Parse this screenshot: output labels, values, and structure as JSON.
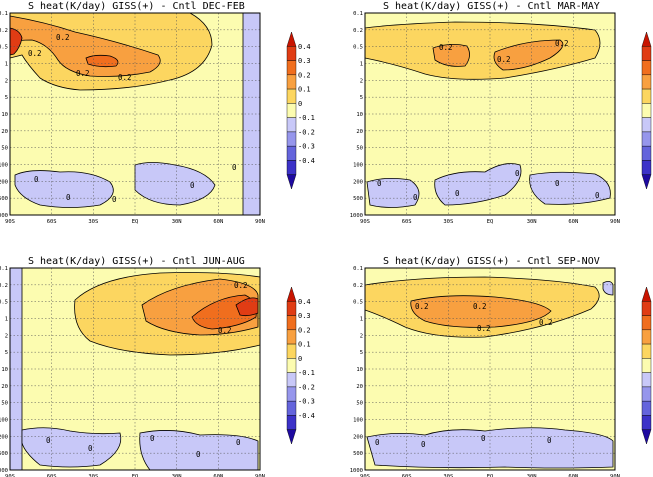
{
  "chart_data": [
    {
      "type": "heatmap",
      "title": "S heat(K/day) GISS(+) - Cntl  DEC-FEB",
      "season": "DEC-FEB",
      "y_ticks": [
        "0.1",
        "0.2",
        "0.5",
        "1",
        "2",
        "5",
        "10",
        "20",
        "50",
        "100",
        "200",
        "500",
        "1000"
      ],
      "x_ticks": [
        "90S",
        "60S",
        "30S",
        "EQ",
        "30N",
        "60N",
        "90N"
      ],
      "cells": [
        {
          "at": "60S-90N",
          "range": "0.1-0.2",
          "value": 0.1
        },
        {
          "at": "90S-60S",
          "range": "0.2-0.5",
          "value": 0.2
        },
        {
          "at": "90S",
          "range": "0.5",
          "value": 0.4
        },
        {
          "at": "30S-EQ",
          "range": "1",
          "value": 0.25
        },
        {
          "at": "60N-90N",
          "range": "20-1000",
          "value": -0.1
        }
      ],
      "contour_labels": [
        "0.2",
        "0.2",
        "0.2",
        "0.2",
        "0",
        "0",
        "0",
        "0",
        "0"
      ]
    },
    {
      "type": "heatmap",
      "title": "S heat(K/day) GISS(+) - Cntl  MAR-MAY",
      "season": "MAR-MAY",
      "y_ticks": [
        "0.1",
        "0.2",
        "0.5",
        "1",
        "2",
        "5",
        "10",
        "20",
        "50",
        "100",
        "200",
        "500",
        "1000"
      ],
      "x_ticks": [
        "90S",
        "60S",
        "30S",
        "EQ",
        "30N",
        "60N",
        "90N"
      ],
      "cells": [
        {
          "at": "90S-90N",
          "range": "0.2-1",
          "value": 0.1
        },
        {
          "at": "30S-EQ",
          "range": "0.5-1",
          "value": 0.2
        },
        {
          "at": "EQ-60N",
          "range": "0.5-1",
          "value": 0.2
        }
      ],
      "contour_labels": [
        "0.2",
        "0.2",
        "0.2",
        "0",
        "0",
        "0",
        "0",
        "0",
        "0"
      ]
    },
    {
      "type": "heatmap",
      "title": "S heat(K/day) GISS(+) - Cntl  JUN-AUG",
      "season": "JUN-AUG",
      "y_ticks": [
        "0.1",
        "0.2",
        "0.5",
        "1",
        "2",
        "5",
        "10",
        "20",
        "50",
        "100",
        "200",
        "500",
        "1000"
      ],
      "x_ticks": [
        "90S",
        "60S",
        "30S",
        "EQ",
        "30N",
        "60N",
        "90N"
      ],
      "cells": [
        {
          "at": "60S-90N",
          "range": "0.2-2",
          "value": 0.1
        },
        {
          "at": "EQ-90N",
          "range": "0.2-1",
          "value": 0.25
        },
        {
          "at": "60N-90N",
          "range": "0.5-1",
          "value": 0.3
        },
        {
          "at": "90S",
          "range": "0.1-1000",
          "value": -0.1
        }
      ],
      "contour_labels": [
        "0.2",
        "0.2",
        "0",
        "0",
        "0",
        "0",
        "0"
      ]
    },
    {
      "type": "heatmap",
      "title": "S heat(K/day) GISS(+) - Cntl  SEP-NOV",
      "season": "SEP-NOV",
      "y_ticks": [
        "0.1",
        "0.2",
        "0.5",
        "1",
        "2",
        "5",
        "10",
        "20",
        "50",
        "100",
        "200",
        "500",
        "1000"
      ],
      "x_ticks": [
        "90S",
        "60S",
        "30S",
        "EQ",
        "30N",
        "60N",
        "90N"
      ],
      "cells": [
        {
          "at": "90S-90N",
          "range": "0.2-1",
          "value": 0.1
        },
        {
          "at": "60S-60N",
          "range": "0.5-1",
          "value": 0.2
        }
      ],
      "contour_labels": [
        "0.2",
        "0.2",
        "0.2",
        "0.2",
        "0",
        "0",
        "0",
        "0"
      ]
    }
  ],
  "colorbar": {
    "labels": [
      "0.4",
      "0.3",
      "0.2",
      "0.1",
      "0",
      "-0.1",
      "-0.2",
      "-0.3",
      "-0.4"
    ],
    "colors": [
      "#c81400",
      "#e03c14",
      "#f06e1e",
      "#f8a040",
      "#fcd660",
      "#fcfcb0",
      "#c8c8f8",
      "#9696ec",
      "#6464dc",
      "#3c32c8",
      "#1e0aa0"
    ]
  },
  "fill_colors": {
    "background": "#fcfcb0",
    "c0.1": "#fcd660",
    "c0.2": "#f8a040",
    "c0.3": "#f06e1e",
    "c0.4": "#e03c14",
    "cneg": "#c8c8f8"
  }
}
